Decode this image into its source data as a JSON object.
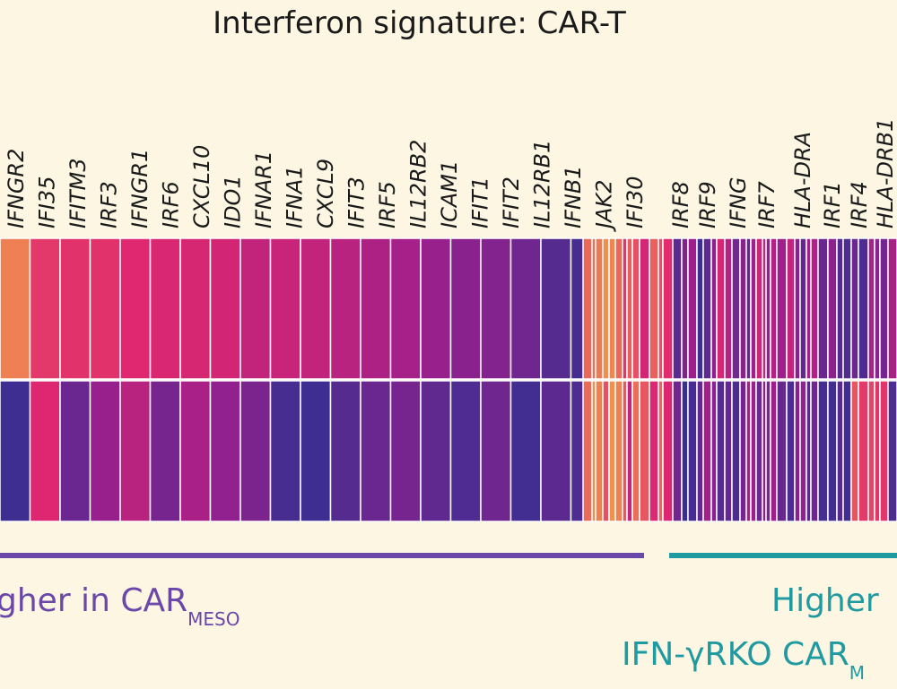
{
  "title": "Interferon signature: CAR-T",
  "chart_data": {
    "type": "heatmap",
    "title": "Interferon signature: CAR-T",
    "genes_left": [
      "IFNGR2",
      "IFI35",
      "IFITM3",
      "IRF3",
      "IFNGR1",
      "IRF6",
      "CXCL10",
      "IDO1",
      "IFNAR1",
      "IFNA1",
      "CXCL9",
      "IFIT3",
      "IRF5",
      "IL12RB2",
      "ICAM1",
      "IFIT1",
      "IFIT2",
      "IL12RB1",
      "IFNB1",
      "JAK2",
      "IFI30"
    ],
    "genes_right": [
      "IRF8",
      "IRF9",
      "IFNG",
      "IRF7",
      "HLA-DRA",
      "IRF1",
      "IRF4",
      "HLA-DRB1"
    ],
    "row_top_values": [
      0.95,
      0.72,
      0.7,
      0.7,
      0.66,
      0.64,
      0.62,
      0.6,
      0.52,
      0.55,
      0.52,
      0.48,
      0.42,
      0.38,
      0.32,
      0.28,
      0.26,
      0.2,
      0.12,
      0.08
    ],
    "row_bottom_values": [
      0.05,
      0.65,
      0.18,
      0.32,
      0.48,
      0.22,
      0.4,
      0.3,
      0.24,
      0.08,
      0.05,
      0.12,
      0.18,
      0.22,
      0.15,
      0.1,
      0.2,
      0.06,
      0.14,
      0.1
    ],
    "colorscale": [
      "#2e3192",
      "#9b1f8d",
      "#e0286f",
      "#f08f4e"
    ],
    "groups": [
      {
        "label_main": "gher in CAR",
        "label_sub": "MESO",
        "color": "#6a47a8"
      },
      {
        "label_line1": "Higher",
        "label_line2_main": "IFN-γRKO CAR",
        "label_line2_sub": "M",
        "color": "#1f9aa0"
      }
    ]
  }
}
